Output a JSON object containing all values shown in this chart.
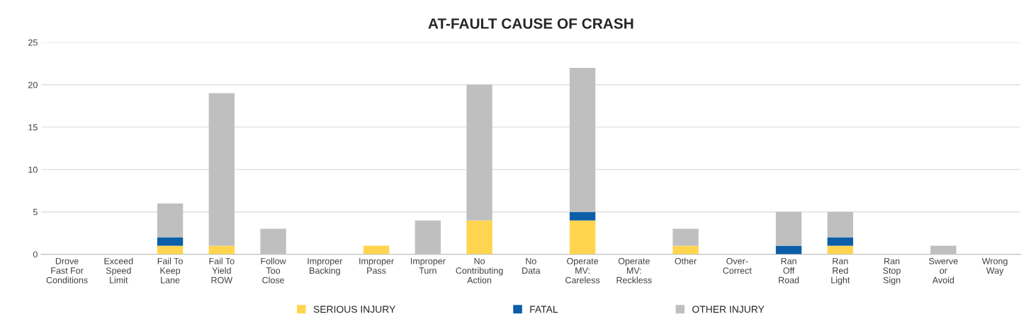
{
  "chart_data": {
    "type": "bar",
    "title": "AT-FAULT CAUSE OF CRASH",
    "categories": [
      "Drove\nFast For\nConditions",
      "Exceed\nSpeed\nLimit",
      "Fail To\nKeep\nLane",
      "Fail To\nYield\nROW",
      "Follow\nToo\nClose",
      "Improper\nBacking",
      "Improper\nPass",
      "Improper\nTurn",
      "No\nContributing\nAction",
      "No\nData",
      "Operate\nMV:\nCareless",
      "Operate\nMV:\nReckless",
      "Other",
      "Over-\nCorrect",
      "Ran\nOff\nRoad",
      "Ran\nRed\nLight",
      "Ran\nStop\nSign",
      "Swerve\nor\nAvoid",
      "Wrong\nWay"
    ],
    "stacked": true,
    "series": [
      {
        "name": "SERIOUS INJURY",
        "color": "#ffd54f",
        "values": [
          0,
          0,
          1,
          1,
          0,
          0,
          1,
          0,
          4,
          0,
          4,
          0,
          1,
          0,
          0,
          1,
          0,
          0,
          0
        ]
      },
      {
        "name": "FATAL",
        "color": "#0b5ea8",
        "values": [
          0,
          0,
          1,
          0,
          0,
          0,
          0,
          0,
          0,
          0,
          1,
          0,
          0,
          0,
          1,
          1,
          0,
          0,
          0
        ]
      },
      {
        "name": "OTHER INJURY",
        "color": "#bfbfbf",
        "values": [
          0,
          0,
          4,
          18,
          3,
          0,
          0,
          4,
          16,
          0,
          17,
          0,
          2,
          0,
          4,
          3,
          0,
          1,
          0
        ]
      }
    ],
    "ylim": [
      0,
      25
    ],
    "yticks": [
      0,
      5,
      10,
      15,
      20,
      25
    ],
    "grid": "y",
    "legend": "bottom"
  }
}
